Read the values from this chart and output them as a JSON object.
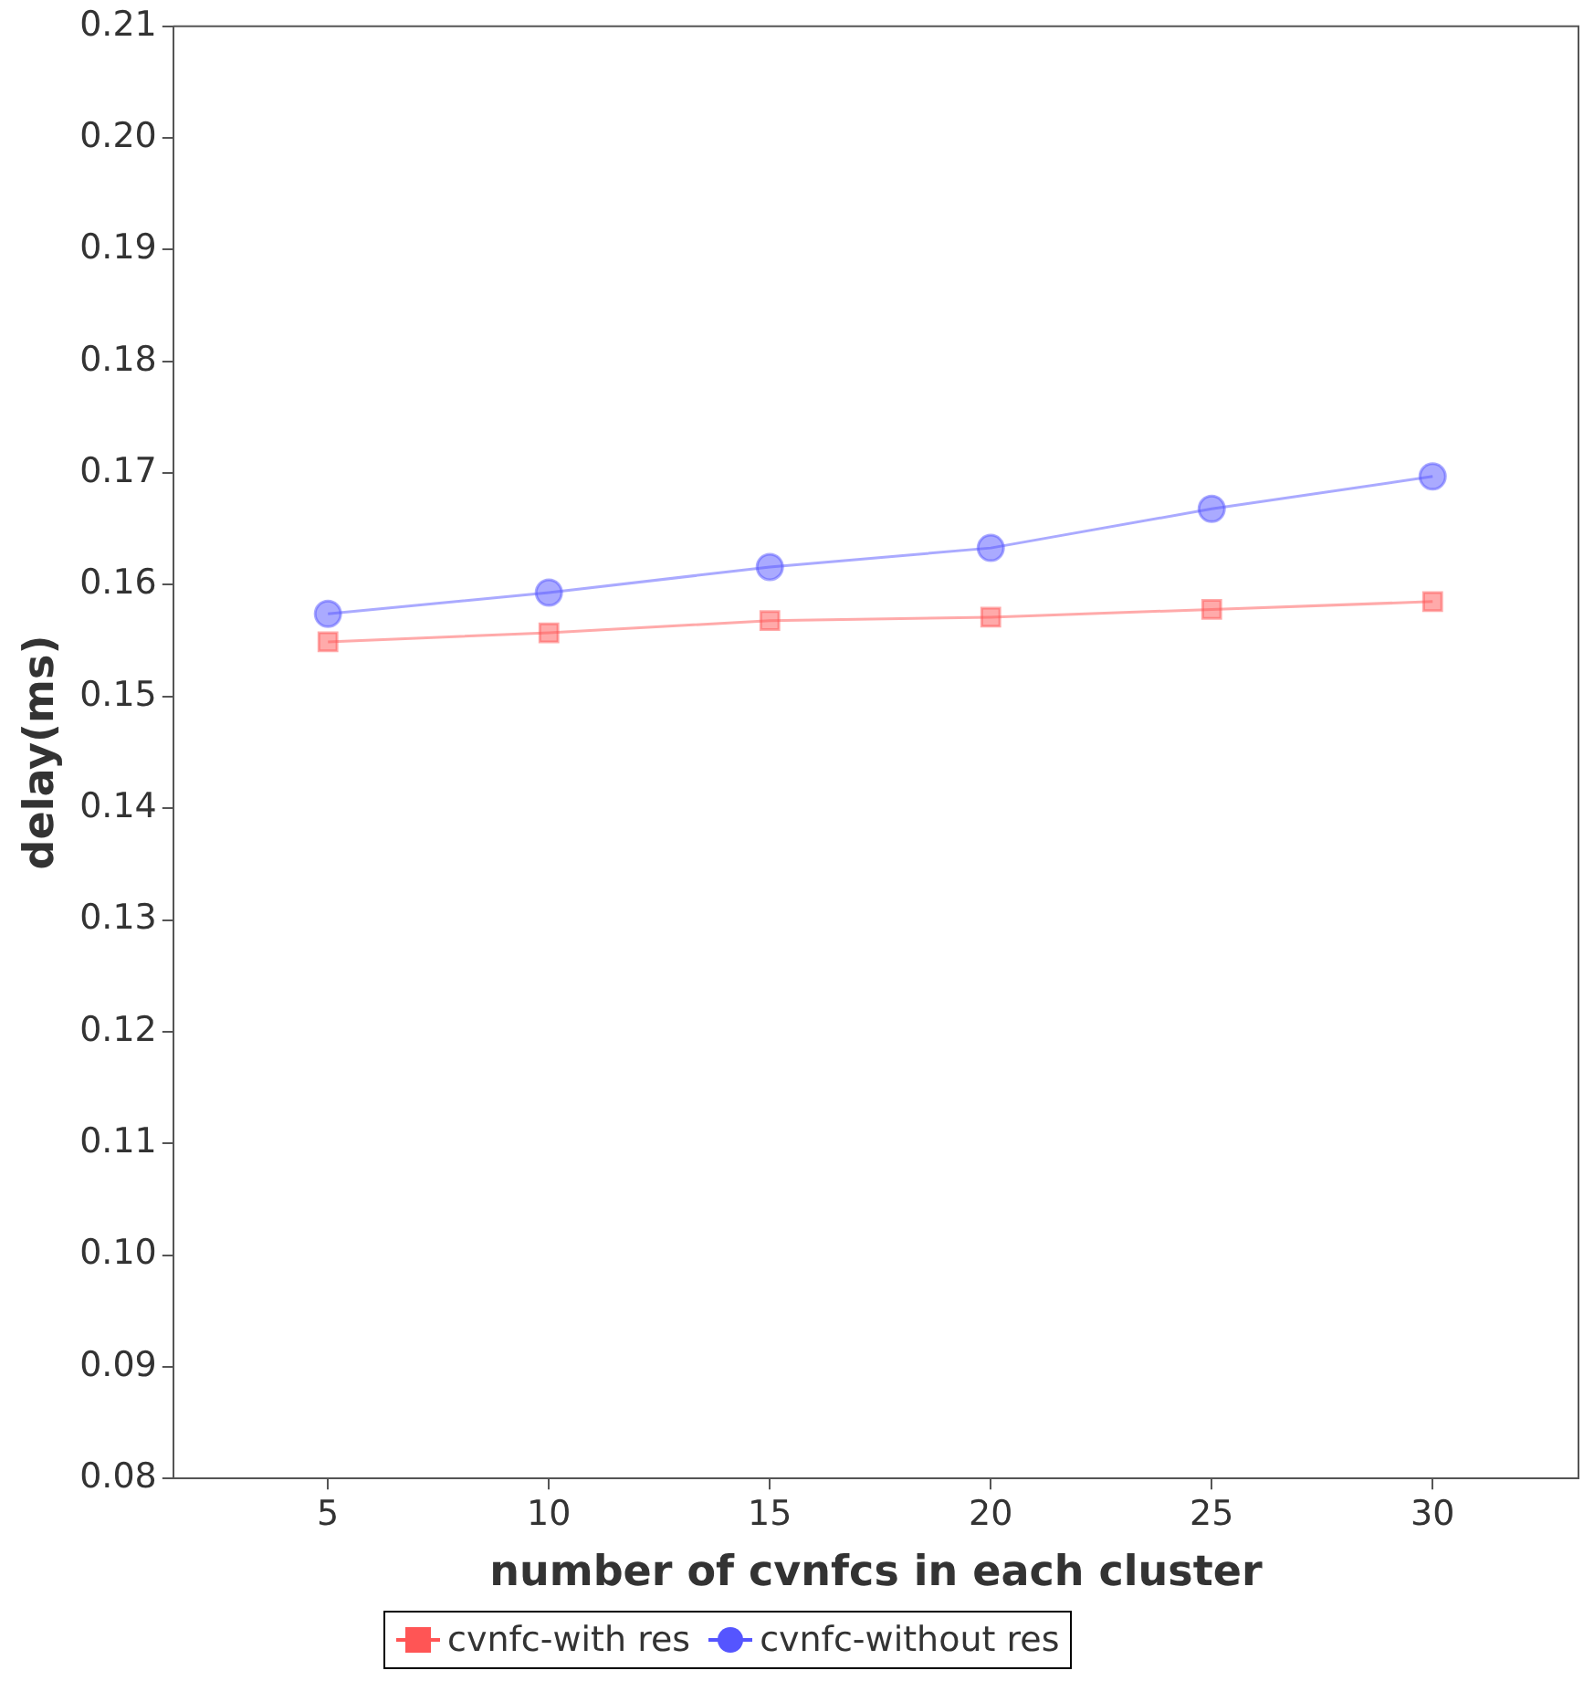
{
  "chart_data": {
    "type": "line",
    "xlabel": "number of cvnfcs in each cluster",
    "ylabel": "delay(ms)",
    "x": [
      5,
      10,
      15,
      20,
      25,
      30
    ],
    "series": [
      {
        "name": "cvnfc-with res",
        "color": "#ff5555",
        "marker": "square",
        "values": [
          0.1549,
          0.1557,
          0.1568,
          0.1571,
          0.1578,
          0.1585
        ]
      },
      {
        "name": "cvnfc-without res",
        "color": "#5555ff",
        "marker": "circle",
        "values": [
          0.1574,
          0.1593,
          0.1616,
          0.1633,
          0.1668,
          0.1697
        ]
      }
    ],
    "xlim": [
      1.5,
      33.3
    ],
    "xticks": [
      5,
      10,
      15,
      20,
      25,
      30
    ],
    "ylim": [
      0.08,
      0.21
    ],
    "yticks": [
      {
        "value": 0.08,
        "label": "0.08"
      },
      {
        "value": 0.09,
        "label": "0.09"
      },
      {
        "value": 0.1,
        "label": "0.10"
      },
      {
        "value": 0.11,
        "label": "0.11"
      },
      {
        "value": 0.12,
        "label": "0.12"
      },
      {
        "value": 0.13,
        "label": "0.13"
      },
      {
        "value": 0.14,
        "label": "0.14"
      },
      {
        "value": 0.15,
        "label": "0.15"
      },
      {
        "value": 0.16,
        "label": "0.16"
      },
      {
        "value": 0.17,
        "label": "0.17"
      },
      {
        "value": 0.18,
        "label": "0.18"
      },
      {
        "value": 0.19,
        "label": "0.19"
      },
      {
        "value": 0.2,
        "label": "0.20"
      },
      {
        "value": 0.21,
        "label": "0.21"
      }
    ],
    "grid": false,
    "legend": "bottom",
    "line_style": "solid"
  }
}
